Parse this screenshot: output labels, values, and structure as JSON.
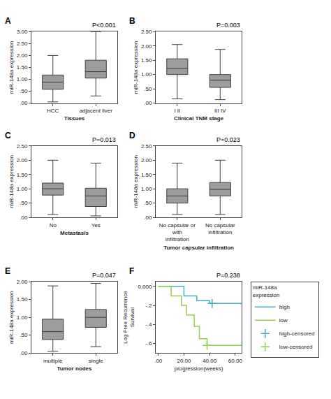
{
  "chart_data": [
    {
      "type": "box",
      "title": "A",
      "annotations": [
        "P<0.001"
      ],
      "xlabel": "Tissues",
      "ylabel": "miR-148a expression",
      "categories": [
        "HCC",
        "adjacent liver"
      ],
      "color": "#3c3c3c",
      "grid": false,
      "boxes": [
        {
          "median": 0.88,
          "q1": 0.58,
          "q3": 1.18,
          "lower": 0.05,
          "upper": 2.0
        },
        {
          "median": 1.32,
          "q1": 1.05,
          "q3": 1.8,
          "lower": 0.3,
          "upper": 3.0
        }
      ],
      "ylim": [
        0,
        3.0
      ],
      "yticks": [
        {
          "value": 0.0,
          "label": ".00"
        },
        {
          "value": 0.5,
          "label": ".50"
        },
        {
          "value": 1.0,
          "label": "1.00"
        },
        {
          "value": 1.5,
          "label": "1.50"
        },
        {
          "value": 2.0,
          "label": "2.00"
        },
        {
          "value": 2.5,
          "label": "2.50"
        },
        {
          "value": 3.0,
          "label": "3.00"
        }
      ]
    },
    {
      "type": "box",
      "title": "B",
      "annotations": [
        "P=0.003"
      ],
      "xlabel": "Clinical TNM stage",
      "ylabel": "miR-148a expression",
      "categories": [
        "I II",
        "III IV"
      ],
      "color": "#3c3c3c",
      "grid": false,
      "boxes": [
        {
          "median": 1.22,
          "q1": 1.0,
          "q3": 1.55,
          "lower": 0.15,
          "upper": 2.05
        },
        {
          "median": 0.8,
          "q1": 0.55,
          "q3": 1.0,
          "lower": 0.12,
          "upper": 1.88
        }
      ],
      "ylim": [
        0,
        2.5
      ],
      "yticks": [
        {
          "value": 0.0,
          "label": ".00"
        },
        {
          "value": 0.5,
          "label": ".50"
        },
        {
          "value": 1.0,
          "label": "1.00"
        },
        {
          "value": 1.5,
          "label": "1.50"
        },
        {
          "value": 2.0,
          "label": "2.00"
        },
        {
          "value": 2.5,
          "label": "2.50"
        }
      ]
    },
    {
      "type": "box",
      "title": "C",
      "annotations": [
        "P=0.013"
      ],
      "xlabel": "Metastasis",
      "ylabel": "miR-148a expression",
      "categories": [
        "No",
        "Yes"
      ],
      "color": "#3c3c3c",
      "grid": false,
      "boxes": [
        {
          "median": 1.0,
          "q1": 0.78,
          "q3": 1.2,
          "lower": 0.1,
          "upper": 2.0
        },
        {
          "median": 0.75,
          "q1": 0.38,
          "q3": 1.02,
          "lower": 0.05,
          "upper": 1.9
        }
      ],
      "ylim": [
        0,
        2.5
      ],
      "yticks": [
        {
          "value": 0.0,
          "label": ".00"
        },
        {
          "value": 0.5,
          "label": ".50"
        },
        {
          "value": 1.0,
          "label": "1.00"
        },
        {
          "value": 1.5,
          "label": "1.50"
        },
        {
          "value": 2.0,
          "label": "2.00"
        },
        {
          "value": 2.5,
          "label": "2.50"
        }
      ]
    },
    {
      "type": "box",
      "title": "D",
      "annotations": [
        "P=0.023"
      ],
      "xlabel": "Tumor capsular infiltration",
      "ylabel": "miR-148a expression",
      "categories": [
        "No capsular or with infiltration",
        "No capsular infiltration"
      ],
      "color": "#3c3c3c",
      "grid": false,
      "boxes": [
        {
          "median": 0.75,
          "q1": 0.5,
          "q3": 1.0,
          "lower": 0.1,
          "upper": 1.9
        },
        {
          "median": 0.98,
          "q1": 0.75,
          "q3": 1.22,
          "lower": 0.1,
          "upper": 2.0
        }
      ],
      "ylim": [
        0,
        2.5
      ],
      "yticks": [
        {
          "value": 0.0,
          "label": ".00"
        },
        {
          "value": 0.5,
          "label": ".50"
        },
        {
          "value": 1.0,
          "label": "1.00"
        },
        {
          "value": 1.5,
          "label": "1.50"
        },
        {
          "value": 2.0,
          "label": "2.00"
        },
        {
          "value": 2.5,
          "label": "2.50"
        }
      ]
    },
    {
      "type": "box",
      "title": "E",
      "annotations": [
        "P=0.047"
      ],
      "xlabel": "Tumor nodes",
      "ylabel": "miR-148a expression",
      "categories": [
        "multiple",
        "single"
      ],
      "color": "#3c3c3c",
      "grid": false,
      "boxes": [
        {
          "median": 0.6,
          "q1": 0.38,
          "q3": 0.95,
          "lower": 0.05,
          "upper": 1.88
        },
        {
          "median": 1.0,
          "q1": 0.72,
          "q3": 1.22,
          "lower": 0.18,
          "upper": 1.95
        }
      ],
      "ylim": [
        0,
        2.0
      ],
      "yticks": [
        {
          "value": 0.0,
          "label": ".00"
        },
        {
          "value": 0.5,
          "label": ".50"
        },
        {
          "value": 1.0,
          "label": "1.00"
        },
        {
          "value": 1.5,
          "label": "1.50"
        },
        {
          "value": 2.0,
          "label": "2.00"
        }
      ]
    },
    {
      "type": "line",
      "title": "F",
      "annotations": [
        "P=0.238"
      ],
      "xlabel": "progression(weeks)",
      "ylabel": "Log Free Recurrence Survival",
      "xlim": [
        -2,
        65
      ],
      "ylim": [
        -0.7,
        0.05
      ],
      "xticks": [
        {
          "value": 0.0,
          "label": ".00"
        },
        {
          "value": 20.0,
          "label": "20.00"
        },
        {
          "value": 40.0,
          "label": "40.00"
        },
        {
          "value": 60.0,
          "label": "60.00"
        }
      ],
      "yticks": [
        {
          "value": 0.0,
          "label": "0.000"
        },
        {
          "value": -0.2,
          "label": "-.2"
        },
        {
          "value": -0.4,
          "label": "-.4"
        },
        {
          "value": -0.6,
          "label": "-.6"
        }
      ],
      "grid": false,
      "legend": "right",
      "legend_title": "miR-148a\nexpression",
      "series": [
        {
          "name": "high",
          "color": "#4bacc6",
          "line_style": "step",
          "x": [
            0,
            20,
            20,
            30,
            30,
            40,
            40,
            65
          ],
          "values": [
            0.0,
            0.0,
            -0.1,
            -0.1,
            -0.15,
            -0.15,
            -0.18,
            -0.18
          ]
        },
        {
          "name": "low",
          "color": "#92d050",
          "line_style": "step",
          "x": [
            0,
            10,
            10,
            18,
            18,
            22,
            22,
            28,
            28,
            32,
            32,
            38,
            38,
            65
          ],
          "values": [
            0.0,
            0.0,
            -0.1,
            -0.1,
            -0.2,
            -0.2,
            -0.3,
            -0.3,
            -0.42,
            -0.42,
            -0.55,
            -0.55,
            -0.62,
            -0.62
          ]
        },
        {
          "name": "high-censored",
          "type": "scatter",
          "marker": "+",
          "color": "#4bacc6",
          "x": [
            42
          ],
          "values": [
            -0.18
          ]
        },
        {
          "name": "low-censored",
          "type": "scatter",
          "marker": "+",
          "color": "#92d050",
          "x": [
            38
          ],
          "values": [
            -0.62
          ]
        }
      ]
    }
  ]
}
